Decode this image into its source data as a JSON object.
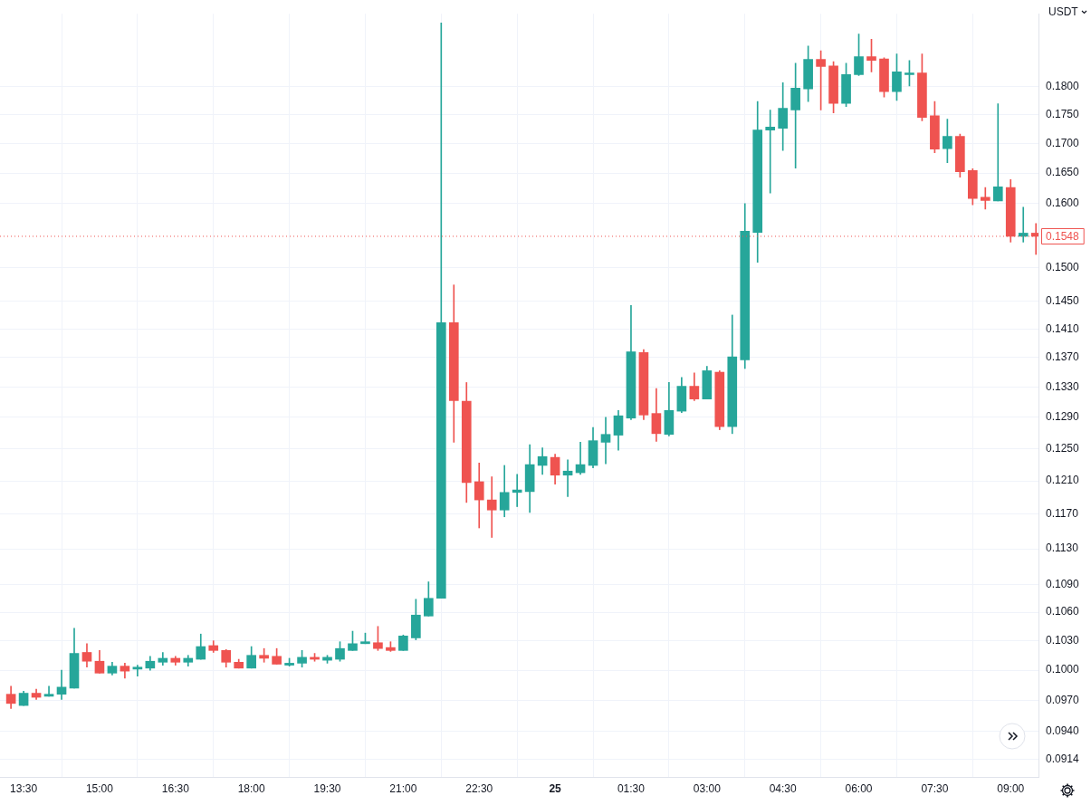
{
  "chart_data": {
    "type": "candlestick",
    "x": [
      "--01-24T13:15",
      "--01-24T13:30",
      "--01-24T13:45",
      "--01-24T14:00",
      "--01-24T14:15",
      "--01-24T14:30",
      "--01-24T14:45",
      "--01-24T15:00",
      "--01-24T15:15",
      "--01-24T15:30",
      "--01-24T15:45",
      "--01-24T16:00",
      "--01-24T16:15",
      "--01-24T16:30",
      "--01-24T16:45",
      "--01-24T17:00",
      "--01-24T17:15",
      "--01-24T17:30",
      "--01-24T17:45",
      "--01-24T18:00",
      "--01-24T18:15",
      "--01-24T18:30",
      "--01-24T18:45",
      "--01-24T19:00",
      "--01-24T19:15",
      "--01-24T19:30",
      "--01-24T19:45",
      "--01-24T20:00",
      "--01-24T20:15",
      "--01-24T20:30",
      "--01-24T20:45",
      "--01-24T21:00",
      "--01-24T21:15",
      "--01-24T21:30",
      "--01-24T21:45",
      "--01-24T22:00",
      "--01-24T22:15",
      "--01-24T22:30",
      "--01-24T22:45",
      "--01-24T23:00",
      "--01-24T23:15",
      "--01-24T23:30",
      "--01-24T23:45",
      "--01-25T00:00",
      "--01-25T00:15",
      "--01-25T00:30",
      "--01-25T00:45",
      "--01-25T01:00",
      "--01-25T01:15",
      "--01-25T01:30",
      "--01-25T01:45",
      "--01-25T02:00",
      "--01-25T02:15",
      "--01-25T02:30",
      "--01-25T02:45",
      "--01-25T03:00",
      "--01-25T03:15",
      "--01-25T03:30",
      "--01-25T03:45",
      "--01-25T04:00",
      "--01-25T04:15",
      "--01-25T04:30",
      "--01-25T04:45",
      "--01-25T05:00",
      "--01-25T05:15",
      "--01-25T05:30",
      "--01-25T05:45",
      "--01-25T06:00",
      "--01-25T06:15",
      "--01-25T06:30",
      "--01-25T06:45",
      "--01-25T07:00",
      "--01-25T07:15",
      "--01-25T07:30",
      "--01-25T07:45",
      "--01-25T08:00",
      "--01-25T08:15",
      "--01-25T08:30",
      "--01-25T08:45",
      "--01-25T09:00",
      "--01-25T09:15",
      "--01-25T09:30"
    ],
    "ohlc": [
      [
        0.0976,
        0.0984,
        0.0962,
        0.0967
      ],
      [
        0.0965,
        0.0979,
        0.0965,
        0.0977
      ],
      [
        0.0977,
        0.0981,
        0.0971,
        0.0973
      ],
      [
        0.0974,
        0.0984,
        0.0974,
        0.0976
      ],
      [
        0.0976,
        0.1,
        0.0971,
        0.0983
      ],
      [
        0.0982,
        0.1043,
        0.0982,
        0.1017
      ],
      [
        0.1018,
        0.1027,
        0.1003,
        0.1009
      ],
      [
        0.1009,
        0.102,
        0.0997,
        0.0997
      ],
      [
        0.0997,
        0.1008,
        0.0995,
        0.1004
      ],
      [
        0.1004,
        0.1007,
        0.0992,
        0.0999
      ],
      [
        0.1001,
        0.1005,
        0.0994,
        0.1003
      ],
      [
        0.1002,
        0.1014,
        0.1,
        0.1009
      ],
      [
        0.1008,
        0.1018,
        0.1005,
        0.1012
      ],
      [
        0.1012,
        0.1014,
        0.1005,
        0.1008
      ],
      [
        0.1008,
        0.1015,
        0.1004,
        0.1012
      ],
      [
        0.1011,
        0.1037,
        0.1011,
        0.1024
      ],
      [
        0.1025,
        0.103,
        0.1018,
        0.102
      ],
      [
        0.102,
        0.1021,
        0.1003,
        0.1008
      ],
      [
        0.1008,
        0.1011,
        0.1002,
        0.1002
      ],
      [
        0.1002,
        0.1024,
        0.1002,
        0.1015
      ],
      [
        0.1015,
        0.1022,
        0.1008,
        0.1012
      ],
      [
        0.1014,
        0.1022,
        0.1006,
        0.1006
      ],
      [
        0.1005,
        0.1012,
        0.1004,
        0.1007
      ],
      [
        0.1007,
        0.102,
        0.1003,
        0.1013
      ],
      [
        0.1013,
        0.1017,
        0.1009,
        0.1011
      ],
      [
        0.101,
        0.1015,
        0.1007,
        0.1013
      ],
      [
        0.1011,
        0.1029,
        0.1009,
        0.1022
      ],
      [
        0.102,
        0.104,
        0.102,
        0.1027
      ],
      [
        0.1027,
        0.1038,
        0.1027,
        0.1029
      ],
      [
        0.1028,
        0.1045,
        0.102,
        0.1022
      ],
      [
        0.1023,
        0.1029,
        0.1019,
        0.102
      ],
      [
        0.102,
        0.1036,
        0.102,
        0.1035
      ],
      [
        0.1033,
        0.1074,
        0.1031,
        0.1057
      ],
      [
        0.1056,
        0.1093,
        0.1056,
        0.1075
      ],
      [
        0.1075,
        0.1919,
        0.1075,
        0.1419
      ],
      [
        0.1419,
        0.1474,
        0.1258,
        0.1312
      ],
      [
        0.1311,
        0.1336,
        0.1184,
        0.1208
      ],
      [
        0.1209,
        0.1232,
        0.1154,
        0.1187
      ],
      [
        0.1187,
        0.1215,
        0.1143,
        0.1175
      ],
      [
        0.1175,
        0.1229,
        0.1167,
        0.1196
      ],
      [
        0.1196,
        0.1218,
        0.1179,
        0.1199
      ],
      [
        0.1197,
        0.1255,
        0.1172,
        0.123
      ],
      [
        0.1229,
        0.1251,
        0.1218,
        0.124
      ],
      [
        0.1239,
        0.1243,
        0.1206,
        0.1217
      ],
      [
        0.1217,
        0.1236,
        0.1191,
        0.1222
      ],
      [
        0.122,
        0.1258,
        0.1218,
        0.123
      ],
      [
        0.1229,
        0.1277,
        0.1226,
        0.126
      ],
      [
        0.1258,
        0.129,
        0.1231,
        0.1268
      ],
      [
        0.1267,
        0.1299,
        0.1248,
        0.1292
      ],
      [
        0.1289,
        0.1444,
        0.1287,
        0.1378
      ],
      [
        0.1377,
        0.1381,
        0.1287,
        0.1293
      ],
      [
        0.1295,
        0.1328,
        0.1259,
        0.1269
      ],
      [
        0.1268,
        0.1336,
        0.1266,
        0.1299
      ],
      [
        0.1298,
        0.1343,
        0.1296,
        0.1331
      ],
      [
        0.1331,
        0.1349,
        0.1312,
        0.1314
      ],
      [
        0.1314,
        0.1358,
        0.1314,
        0.1352
      ],
      [
        0.135,
        0.1352,
        0.1274,
        0.1278
      ],
      [
        0.1278,
        0.143,
        0.1269,
        0.1371
      ],
      [
        0.1367,
        0.16,
        0.1355,
        0.1556
      ],
      [
        0.1554,
        0.1773,
        0.1508,
        0.1723
      ],
      [
        0.1723,
        0.1758,
        0.1617,
        0.1728
      ],
      [
        0.1726,
        0.1807,
        0.1688,
        0.1761
      ],
      [
        0.1758,
        0.1843,
        0.1658,
        0.1797
      ],
      [
        0.1796,
        0.1875,
        0.1773,
        0.185
      ],
      [
        0.185,
        0.1866,
        0.1758,
        0.1837
      ],
      [
        0.1838,
        0.1846,
        0.1753,
        0.177
      ],
      [
        0.177,
        0.1843,
        0.1764,
        0.1822
      ],
      [
        0.1822,
        0.1898,
        0.182,
        0.1855
      ],
      [
        0.1855,
        0.1888,
        0.1827,
        0.1848
      ],
      [
        0.1851,
        0.1853,
        0.1781,
        0.1791
      ],
      [
        0.1791,
        0.186,
        0.1775,
        0.1827
      ],
      [
        0.1822,
        0.1848,
        0.1801,
        0.1825
      ],
      [
        0.1825,
        0.186,
        0.1739,
        0.1745
      ],
      [
        0.1748,
        0.1773,
        0.1684,
        0.169
      ],
      [
        0.1691,
        0.1742,
        0.1667,
        0.1712
      ],
      [
        0.1712,
        0.1716,
        0.1643,
        0.1652
      ],
      [
        0.1654,
        0.1657,
        0.1598,
        0.1608
      ],
      [
        0.161,
        0.1626,
        0.1591,
        0.1605
      ],
      [
        0.1604,
        0.1769,
        0.1604,
        0.1627
      ],
      [
        0.1626,
        0.1639,
        0.1539,
        0.1548
      ],
      [
        0.1548,
        0.1594,
        0.1539,
        0.1553
      ],
      [
        0.1553,
        0.1568,
        0.152,
        0.1548
      ]
    ],
    "colors": [
      "#ef5350",
      "#26a69a",
      "#ef5350",
      "#26a69a",
      "#26a69a",
      "#26a69a",
      "#ef5350",
      "#ef5350",
      "#26a69a",
      "#ef5350",
      "#26a69a",
      "#26a69a",
      "#26a69a",
      "#ef5350",
      "#26a69a",
      "#26a69a",
      "#ef5350",
      "#ef5350",
      "#ef5350",
      "#26a69a",
      "#ef5350",
      "#ef5350",
      "#26a69a",
      "#26a69a",
      "#ef5350",
      "#26a69a",
      "#26a69a",
      "#26a69a",
      "#26a69a",
      "#ef5350",
      "#ef5350",
      "#26a69a",
      "#26a69a",
      "#26a69a",
      "#26a69a",
      "#ef5350",
      "#ef5350",
      "#ef5350",
      "#ef5350",
      "#26a69a",
      "#26a69a",
      "#26a69a",
      "#26a69a",
      "#ef5350",
      "#26a69a",
      "#26a69a",
      "#26a69a",
      "#26a69a",
      "#26a69a",
      "#26a69a",
      "#ef5350",
      "#ef5350",
      "#26a69a",
      "#26a69a",
      "#ef5350",
      "#26a69a",
      "#ef5350",
      "#26a69a",
      "#26a69a",
      "#26a69a",
      "#26a69a",
      "#26a69a",
      "#26a69a",
      "#26a69a",
      "#ef5350",
      "#ef5350",
      "#26a69a",
      "#26a69a",
      "#ef5350",
      "#ef5350",
      "#26a69a",
      "#26a69a",
      "#ef5350",
      "#ef5350",
      "#26a69a",
      "#ef5350",
      "#ef5350",
      "#ef5350",
      "#26a69a",
      "#ef5350",
      "#26a69a",
      "#ef5350"
    ],
    "xlim": [
      "--01-24T13:02",
      "--01-25T09:33"
    ],
    "xticks": [
      {
        "value": "--01-24T13:30",
        "label": "13:30"
      },
      {
        "value": "--01-24T15:00",
        "label": "15:00"
      },
      {
        "value": "--01-24T16:30",
        "label": "16:30"
      },
      {
        "value": "--01-24T18:00",
        "label": "18:00"
      },
      {
        "value": "--01-24T19:30",
        "label": "19:30"
      },
      {
        "value": "--01-24T21:00",
        "label": "21:00"
      },
      {
        "value": "--01-24T22:30",
        "label": "22:30"
      },
      {
        "value": "--01-25T00:00",
        "label": "25"
      },
      {
        "value": "--01-25T01:30",
        "label": "01:30"
      },
      {
        "value": "--01-25T03:00",
        "label": "03:00"
      },
      {
        "value": "--01-25T04:30",
        "label": "04:30"
      },
      {
        "value": "--01-25T06:00",
        "label": "06:00"
      },
      {
        "value": "--01-25T07:30",
        "label": "07:30"
      },
      {
        "value": "--01-25T09:00",
        "label": "09:00"
      }
    ],
    "ylim": [
      0.0898,
      0.1937
    ],
    "yticks": [
      {
        "value": 0.0914,
        "label": "0.0914"
      },
      {
        "value": 0.094,
        "label": "0.0940"
      },
      {
        "value": 0.097,
        "label": "0.0970"
      },
      {
        "value": 0.1,
        "label": "0.1000"
      },
      {
        "value": 0.103,
        "label": "0.1030"
      },
      {
        "value": 0.106,
        "label": "0.1060"
      },
      {
        "value": 0.109,
        "label": "0.1090"
      },
      {
        "value": 0.113,
        "label": "0.1130"
      },
      {
        "value": 0.117,
        "label": "0.1170"
      },
      {
        "value": 0.121,
        "label": "0.1210"
      },
      {
        "value": 0.125,
        "label": "0.1250"
      },
      {
        "value": 0.129,
        "label": "0.1290"
      },
      {
        "value": 0.133,
        "label": "0.1330"
      },
      {
        "value": 0.137,
        "label": "0.1370"
      },
      {
        "value": 0.141,
        "label": "0.1410"
      },
      {
        "value": 0.145,
        "label": "0.1450"
      },
      {
        "value": 0.15,
        "label": "0.1500"
      },
      {
        "value": 0.16,
        "label": "0.1600"
      },
      {
        "value": 0.165,
        "label": "0.1650"
      },
      {
        "value": 0.17,
        "label": "0.1700"
      },
      {
        "value": 0.175,
        "label": "0.1750"
      },
      {
        "value": 0.18,
        "label": "0.1800"
      }
    ],
    "log": true,
    "grid": true,
    "ref_lines": [
      {
        "axis": "y",
        "value": 0.1548,
        "label": "0.1548",
        "color": "#ef5350",
        "line_style": "dotted"
      }
    ],
    "annotations": [
      "USDT"
    ]
  }
}
